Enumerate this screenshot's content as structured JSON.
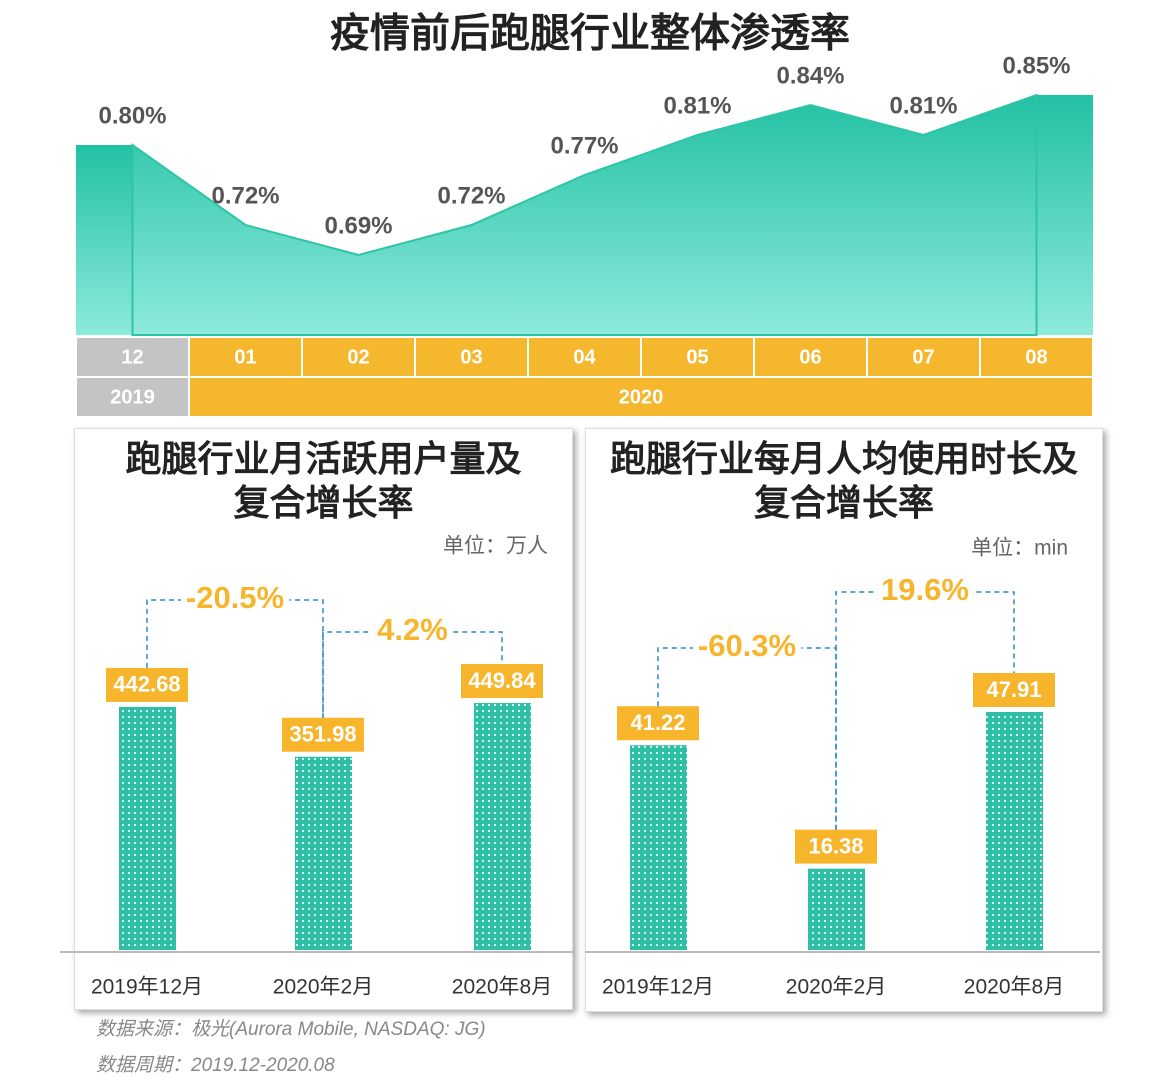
{
  "title": "疫情前后跑腿行业整体渗透率",
  "chart_data": [
    {
      "type": "area",
      "categories": [
        "12",
        "01",
        "02",
        "03",
        "04",
        "05",
        "06",
        "07",
        "08"
      ],
      "years": [
        "2019",
        "2020"
      ],
      "values": [
        0.8,
        0.72,
        0.69,
        0.72,
        0.77,
        0.81,
        0.84,
        0.81,
        0.85
      ],
      "value_labels": [
        "0.80%",
        "0.72%",
        "0.69%",
        "0.72%",
        "0.77%",
        "0.81%",
        "0.84%",
        "0.81%",
        "0.85%"
      ],
      "color": "#2ec4a6"
    },
    {
      "type": "bar",
      "title": "跑腿行业月活跃用户量及复合增长率",
      "unit": "单位：万人",
      "categories": [
        "2019年12月",
        "2020年2月",
        "2020年8月"
      ],
      "values": [
        442.68,
        351.98,
        449.84
      ],
      "color": "#2fbfa4",
      "label_color": "#f7b52c",
      "changes": [
        {
          "value": -20.5,
          "label": "-20.5%"
        },
        {
          "value": 4.2,
          "label": "4.2%"
        }
      ]
    },
    {
      "type": "bar",
      "title": "跑腿行业每月人均使用时长及复合增长率",
      "unit": "单位：min",
      "categories": [
        "2019年12月",
        "2020年2月",
        "2020年8月"
      ],
      "values": [
        41.22,
        16.38,
        47.91
      ],
      "color": "#2fbfa4",
      "label_color": "#f7b52c",
      "changes": [
        {
          "value": -60.3,
          "label": "-60.3%"
        },
        {
          "value": 19.6,
          "label": "19.6%"
        }
      ]
    }
  ],
  "source": "数据来源：极光(Aurora Mobile, NASDAQ: JG)",
  "period": "数据周期：2019.12-2020.08"
}
